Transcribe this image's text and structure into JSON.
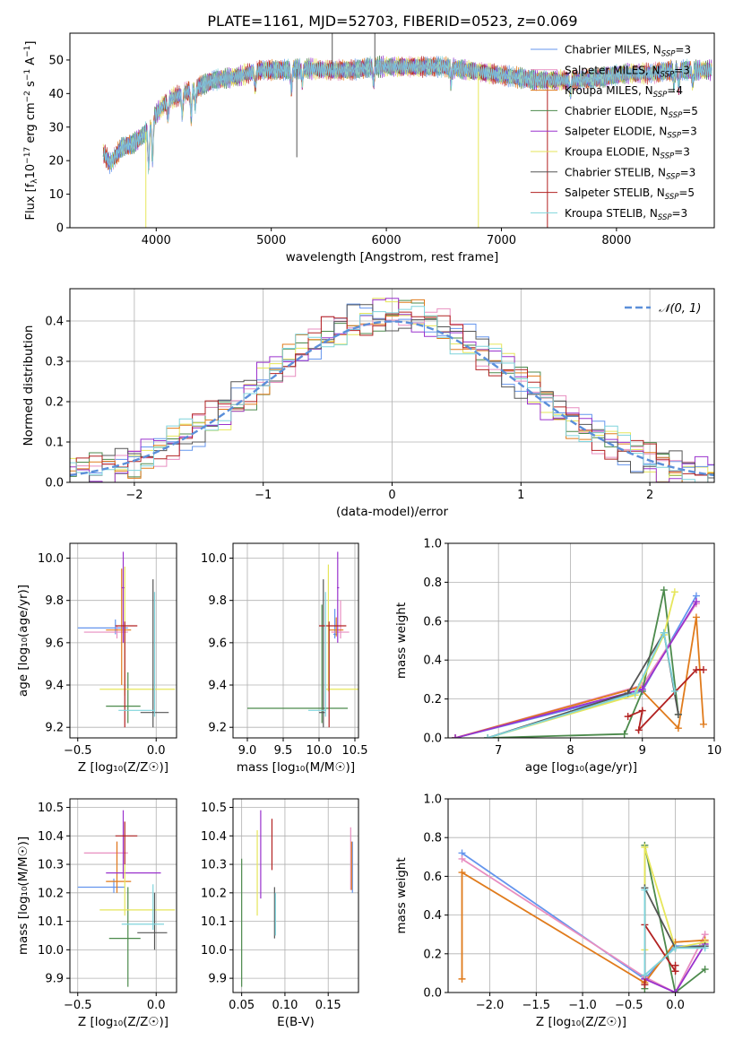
{
  "figure_title": "PLATE=1161, MJD=52703, FIBERID=0523, z=0.069",
  "colors": {
    "CM": "#6495ed",
    "SM": "#e88ec0",
    "KM": "#e07b1c",
    "CE": "#4c8a4c",
    "SE": "#9a32cd",
    "KE": "#e6e65a",
    "CS": "#555555",
    "SS": "#b22222",
    "KS": "#7fd4dc",
    "gauss": "#5b8fd9"
  },
  "legend": [
    {
      "key": "CM",
      "label": "Chabrier MILES, N",
      "sub": "SSP",
      "tail": "=3"
    },
    {
      "key": "SM",
      "label": "Salpeter MILES, N",
      "sub": "SSP",
      "tail": "=3"
    },
    {
      "key": "KM",
      "label": "Kroupa MILES, N",
      "sub": "SSP",
      "tail": "=4"
    },
    {
      "key": "CE",
      "label": "Chabrier ELODIE, N",
      "sub": "SSP",
      "tail": "=5"
    },
    {
      "key": "SE",
      "label": "Salpeter ELODIE, N",
      "sub": "SSP",
      "tail": "=3"
    },
    {
      "key": "KE",
      "label": "Kroupa ELODIE, N",
      "sub": "SSP",
      "tail": "=3"
    },
    {
      "key": "CS",
      "label": "Chabrier STELIB, N",
      "sub": "SSP",
      "tail": "=3"
    },
    {
      "key": "SS",
      "label": "Salpeter STELIB, N",
      "sub": "SSP",
      "tail": "=5"
    },
    {
      "key": "KS",
      "label": "Kroupa STELIB, N",
      "sub": "SSP",
      "tail": "=3"
    }
  ],
  "chart_data": [
    {
      "id": "spectrum",
      "type": "line",
      "xlabel": "wavelength [Angstrom, rest frame]",
      "ylabel_parts": [
        "Flux [f",
        "λ",
        "10",
        "−17",
        " erg cm",
        "−2",
        " s",
        "−1",
        " A",
        "−1",
        "]"
      ],
      "xlim": [
        3250,
        8850
      ],
      "ylim": [
        0,
        58
      ],
      "xticks": [
        4000,
        5000,
        6000,
        7000,
        8000
      ],
      "yticks": [
        0,
        10,
        20,
        30,
        40,
        50
      ],
      "continuum": [
        [
          3550,
          22
        ],
        [
          3600,
          19
        ],
        [
          3700,
          24
        ],
        [
          3800,
          25
        ],
        [
          3900,
          28
        ],
        [
          4000,
          34
        ],
        [
          4100,
          38
        ],
        [
          4300,
          41
        ],
        [
          4500,
          44
        ],
        [
          4700,
          45
        ],
        [
          4900,
          47
        ],
        [
          5100,
          47
        ],
        [
          5300,
          47.5
        ],
        [
          5500,
          47
        ],
        [
          5700,
          47
        ],
        [
          5900,
          48
        ],
        [
          6100,
          48
        ],
        [
          6300,
          48
        ],
        [
          6500,
          48
        ],
        [
          6700,
          47
        ],
        [
          6900,
          46
        ],
        [
          7100,
          45
        ],
        [
          7300,
          44
        ],
        [
          7500,
          44
        ],
        [
          7700,
          44
        ],
        [
          7900,
          45
        ],
        [
          8100,
          46
        ],
        [
          8300,
          46
        ],
        [
          8500,
          47
        ],
        [
          8800,
          47
        ]
      ],
      "absorption_lines": [
        [
          3934,
          12
        ],
        [
          3968,
          12
        ],
        [
          4102,
          5
        ],
        [
          4227,
          6
        ],
        [
          4304,
          8
        ],
        [
          4340,
          5
        ],
        [
          4861,
          5
        ],
        [
          5175,
          6
        ],
        [
          5270,
          4
        ],
        [
          5890,
          5
        ],
        [
          6563,
          4
        ],
        [
          7600,
          4
        ],
        [
          8500,
          4
        ],
        [
          8542,
          5
        ],
        [
          8662,
          4
        ]
      ],
      "spikes": [
        [
          3910,
          0,
          "KE"
        ],
        [
          5222,
          21,
          "CS"
        ],
        [
          5530,
          58,
          "CS"
        ],
        [
          5900,
          58,
          "CS"
        ],
        [
          6800,
          0,
          "KE"
        ],
        [
          7400,
          0,
          "SS"
        ]
      ]
    },
    {
      "id": "residuals",
      "type": "histogram",
      "xlabel": "(data-model)/error",
      "ylabel": "Normed distribution",
      "xlim": [
        -2.5,
        2.5
      ],
      "ylim": [
        0,
        0.48
      ],
      "xticks": [
        -2,
        -1,
        0,
        1,
        2
      ],
      "yticks": [
        0.0,
        0.1,
        0.2,
        0.3,
        0.4
      ],
      "bin_width": 0.1,
      "gauss_label": "𝒩(0, 1)"
    },
    {
      "id": "age_vs_Z",
      "type": "scatter",
      "xlabel": "Z [log₁₀(Z/Z☉)]",
      "ylabel": "age  [log₁₀(age/yr)]",
      "xlim": [
        -0.55,
        0.13
      ],
      "ylim": [
        9.15,
        10.07
      ],
      "xticks": [
        -0.5,
        0.0
      ],
      "yticks": [
        9.2,
        9.4,
        9.6,
        9.8,
        10.0
      ],
      "points": [
        {
          "k": "CM",
          "x": -0.26,
          "y": 9.67,
          "ex": [
            -0.5,
            -0.18
          ],
          "ey": [
            9.64,
            9.71
          ]
        },
        {
          "k": "SM",
          "x": -0.25,
          "y": 9.65,
          "ex": [
            -0.46,
            -0.18
          ],
          "ey": [
            9.62,
            9.68
          ]
        },
        {
          "k": "KM",
          "x": -0.22,
          "y": 9.66,
          "ex": [
            -0.32,
            -0.16
          ],
          "ey": [
            9.4,
            9.95
          ]
        },
        {
          "k": "CE",
          "x": -0.18,
          "y": 9.3,
          "ex": [
            -0.32,
            -0.1
          ],
          "ey": [
            9.22,
            9.46
          ]
        },
        {
          "k": "SE",
          "x": -0.21,
          "y": 9.86,
          "ex": [
            -0.22,
            -0.2
          ],
          "ey": [
            9.6,
            10.03
          ]
        },
        {
          "k": "KE",
          "x": -0.2,
          "y": 9.38,
          "ex": [
            -0.36,
            0.12
          ],
          "ey": [
            9.35,
            9.96
          ]
        },
        {
          "k": "CS",
          "x": -0.02,
          "y": 9.27,
          "ex": [
            -0.1,
            0.08
          ],
          "ey": [
            9.2,
            9.9
          ]
        },
        {
          "k": "SS",
          "x": -0.2,
          "y": 9.68,
          "ex": [
            -0.26,
            -0.12
          ],
          "ey": [
            9.2,
            9.7
          ]
        },
        {
          "k": "KS",
          "x": -0.01,
          "y": 9.28,
          "ex": [
            -0.24,
            -0.01
          ],
          "ey": [
            9.25,
            9.84
          ]
        }
      ]
    },
    {
      "id": "age_vs_mass",
      "type": "scatter",
      "xlabel": "mass [log₁₀(M/M☉)]",
      "ylabel": "",
      "xlim": [
        8.8,
        10.55
      ],
      "ylim": [
        9.15,
        10.07
      ],
      "xticks": [
        9.0,
        9.5,
        10.0,
        10.5
      ],
      "yticks": [
        9.2,
        9.4,
        9.6,
        9.8,
        10.0
      ],
      "points": [
        {
          "k": "CM",
          "x": 10.22,
          "y": 9.64,
          "ex": [
            10.2,
            10.25
          ],
          "ey": [
            9.62,
            9.76
          ]
        },
        {
          "k": "SM",
          "x": 10.3,
          "y": 9.65,
          "ex": [
            10.17,
            10.42
          ],
          "ey": [
            9.62,
            9.8
          ]
        },
        {
          "k": "KM",
          "x": 10.24,
          "y": 9.66,
          "ex": [
            10.14,
            10.34
          ],
          "ey": [
            9.63,
            9.72
          ]
        },
        {
          "k": "CE",
          "x": 10.04,
          "y": 9.29,
          "ex": [
            9.0,
            10.4
          ],
          "ey": [
            9.22,
            9.78
          ]
        },
        {
          "k": "SE",
          "x": 10.26,
          "y": 9.86,
          "ex": [
            10.25,
            10.28
          ],
          "ey": [
            9.6,
            10.03
          ]
        },
        {
          "k": "KE",
          "x": 10.13,
          "y": 9.38,
          "ex": [
            10.1,
            10.55
          ],
          "ey": [
            9.37,
            9.97
          ]
        },
        {
          "k": "CS",
          "x": 10.06,
          "y": 9.27,
          "ex": [
            10.0,
            10.08
          ],
          "ey": [
            9.2,
            9.9
          ]
        },
        {
          "k": "SS",
          "x": 10.14,
          "y": 9.68,
          "ex": [
            10.0,
            10.38
          ],
          "ey": [
            9.2,
            9.7
          ]
        },
        {
          "k": "KS",
          "x": 10.09,
          "y": 9.28,
          "ex": [
            9.85,
            10.1
          ],
          "ey": [
            9.25,
            9.84
          ]
        }
      ]
    },
    {
      "id": "weight_vs_age",
      "type": "line",
      "xlabel": "age  [log₁₀(age/yr)]",
      "ylabel": "mass weight",
      "xlim": [
        6.3,
        10.0
      ],
      "ylim": [
        0,
        1
      ],
      "xticks": [
        7,
        8,
        9,
        10
      ],
      "yticks": [
        0.0,
        0.2,
        0.4,
        0.6,
        0.8,
        1.0
      ],
      "series": [
        {
          "k": "CM",
          "x": [
            6.4,
            9.0,
            9.75
          ],
          "y": [
            0.0,
            0.24,
            0.73
          ]
        },
        {
          "k": "SM",
          "x": [
            6.4,
            9.0,
            9.75
          ],
          "y": [
            0.0,
            0.27,
            0.69
          ]
        },
        {
          "k": "KM",
          "x": [
            6.4,
            8.95,
            9.5,
            9.75,
            9.85
          ],
          "y": [
            0.0,
            0.26,
            0.05,
            0.62,
            0.07
          ]
        },
        {
          "k": "CE",
          "x": [
            6.85,
            8.75,
            9.0,
            9.3,
            9.5
          ],
          "y": [
            0.0,
            0.02,
            0.24,
            0.76,
            0.12
          ]
        },
        {
          "k": "SE",
          "x": [
            6.4,
            9.0,
            9.75
          ],
          "y": [
            0.0,
            0.25,
            0.7
          ]
        },
        {
          "k": "KE",
          "x": [
            6.85,
            8.9,
            9.3,
            9.45
          ],
          "y": [
            0.0,
            0.22,
            0.53,
            0.75
          ]
        },
        {
          "k": "CS",
          "x": [
            6.85,
            8.8,
            9.3,
            9.5
          ],
          "y": [
            0.0,
            0.23,
            0.54,
            0.12
          ]
        },
        {
          "k": "SS",
          "x": [
            8.8,
            9.0,
            8.95,
            9.75,
            9.85
          ],
          "y": [
            0.11,
            0.14,
            0.04,
            0.35,
            0.35
          ]
        },
        {
          "k": "KS",
          "x": [
            6.85,
            8.9,
            9.3,
            9.45
          ],
          "y": [
            0.0,
            0.23,
            0.54,
            0.24
          ]
        }
      ]
    },
    {
      "id": "mass_vs_Z",
      "type": "scatter",
      "xlabel": "Z [log₁₀(Z/Z☉)]",
      "ylabel": "mass [log₁₀(M/M☉)]",
      "xlim": [
        -0.55,
        0.13
      ],
      "ylim": [
        9.85,
        10.53
      ],
      "xticks": [
        -0.5,
        0.0
      ],
      "yticks": [
        9.9,
        10.0,
        10.1,
        10.2,
        10.3,
        10.4,
        10.5
      ],
      "points": [
        {
          "k": "CM",
          "x": -0.27,
          "y": 10.22,
          "ex": [
            -0.5,
            -0.2
          ],
          "ey": [
            10.2,
            10.25
          ]
        },
        {
          "k": "SM",
          "x": -0.25,
          "y": 10.34,
          "ex": [
            -0.46,
            -0.18
          ],
          "ey": [
            10.3,
            10.38
          ]
        },
        {
          "k": "KM",
          "x": -0.25,
          "y": 10.24,
          "ex": [
            -0.32,
            -0.16
          ],
          "ey": [
            10.2,
            10.38
          ]
        },
        {
          "k": "CE",
          "x": -0.18,
          "y": 10.04,
          "ex": [
            -0.3,
            -0.1
          ],
          "ey": [
            9.87,
            10.22
          ]
        },
        {
          "k": "SE",
          "x": -0.21,
          "y": 10.27,
          "ex": [
            -0.32,
            0.03
          ],
          "ey": [
            10.25,
            10.49
          ]
        },
        {
          "k": "KE",
          "x": -0.2,
          "y": 10.14,
          "ex": [
            -0.36,
            0.12
          ],
          "ey": [
            10.12,
            10.3
          ]
        },
        {
          "k": "CS",
          "x": -0.01,
          "y": 10.06,
          "ex": [
            -0.12,
            0.07
          ],
          "ey": [
            10.0,
            10.2
          ]
        },
        {
          "k": "SS",
          "x": -0.2,
          "y": 10.4,
          "ex": [
            -0.26,
            -0.12
          ],
          "ey": [
            10.3,
            10.45
          ]
        },
        {
          "k": "KS",
          "x": -0.02,
          "y": 10.09,
          "ex": [
            -0.22,
            0.05
          ],
          "ey": [
            10.07,
            10.23
          ]
        }
      ]
    },
    {
      "id": "mass_vs_EBV",
      "type": "scatter",
      "xlabel": "E(B-V)",
      "ylabel": "",
      "xlim": [
        0.04,
        0.185
      ],
      "ylim": [
        9.85,
        10.53
      ],
      "xticks": [
        0.05,
        0.1,
        0.15
      ],
      "yticks": [
        9.9,
        10.0,
        10.1,
        10.2,
        10.3,
        10.4,
        10.5
      ],
      "points": [
        {
          "k": "CM",
          "x": 0.178,
          "y": 10.22,
          "ey": [
            10.2,
            10.38
          ]
        },
        {
          "k": "SM",
          "x": 0.176,
          "y": 10.33,
          "ey": [
            10.21,
            10.43
          ]
        },
        {
          "k": "KM",
          "x": 0.177,
          "y": 10.3,
          "ey": [
            10.21,
            10.38
          ]
        },
        {
          "k": "CE",
          "x": 0.05,
          "y": 10.1,
          "ey": [
            9.87,
            10.32
          ]
        },
        {
          "k": "SE",
          "x": 0.072,
          "y": 10.3,
          "ey": [
            10.18,
            10.49
          ]
        },
        {
          "k": "KE",
          "x": 0.068,
          "y": 10.27,
          "ey": [
            10.12,
            10.42
          ]
        },
        {
          "k": "CS",
          "x": 0.088,
          "y": 10.12,
          "ey": [
            10.04,
            10.22
          ]
        },
        {
          "k": "SS",
          "x": 0.085,
          "y": 10.38,
          "ey": [
            10.28,
            10.46
          ]
        },
        {
          "k": "KS",
          "x": 0.089,
          "y": 10.1,
          "ey": [
            10.05,
            10.2
          ]
        }
      ]
    },
    {
      "id": "weight_vs_Z",
      "type": "line",
      "xlabel": "Z [log₁₀(Z/Z☉)]",
      "ylabel": "mass weight",
      "xlim": [
        -2.45,
        0.42
      ],
      "ylim": [
        0,
        1
      ],
      "xticks": [
        -2.0,
        -1.5,
        -1.0,
        -0.5,
        0.0
      ],
      "yticks": [
        0.0,
        0.2,
        0.4,
        0.6,
        0.8,
        1.0
      ],
      "series": [
        {
          "k": "CM",
          "x": [
            -2.3,
            -0.33,
            0.0,
            0.32
          ],
          "y": [
            0.72,
            0.07,
            0.24,
            0.24
          ]
        },
        {
          "k": "SM",
          "x": [
            -2.3,
            -0.33,
            0.0,
            0.32
          ],
          "y": [
            0.69,
            0.08,
            0.0,
            0.3
          ]
        },
        {
          "k": "KM",
          "x": [
            -2.3,
            -2.3,
            -0.33,
            0.0,
            0.32
          ],
          "y": [
            0.07,
            0.62,
            0.05,
            0.26,
            0.27
          ]
        },
        {
          "k": "CE",
          "x": [
            -0.33,
            -0.33,
            0.0,
            0.32
          ],
          "y": [
            0.02,
            0.76,
            0.0,
            0.12
          ]
        },
        {
          "k": "SE",
          "x": [
            -0.33,
            0.0,
            0.32
          ],
          "y": [
            0.07,
            0.0,
            0.25
          ]
        },
        {
          "k": "KE",
          "x": [
            -0.33,
            -0.33,
            0.0,
            0.32
          ],
          "y": [
            0.22,
            0.75,
            0.23,
            0.26
          ]
        },
        {
          "k": "CS",
          "x": [
            -0.33,
            -0.33,
            0.0,
            0.32
          ],
          "y": [
            0.09,
            0.54,
            0.23,
            0.24
          ]
        },
        {
          "k": "SS",
          "x": [
            -0.33,
            -0.33,
            0.0,
            0.0
          ],
          "y": [
            0.04,
            0.35,
            0.11,
            0.14
          ]
        },
        {
          "k": "KS",
          "x": [
            -0.33,
            -0.33,
            0.0,
            0.32
          ],
          "y": [
            0.53,
            0.09,
            0.23,
            0.23
          ]
        }
      ]
    }
  ]
}
